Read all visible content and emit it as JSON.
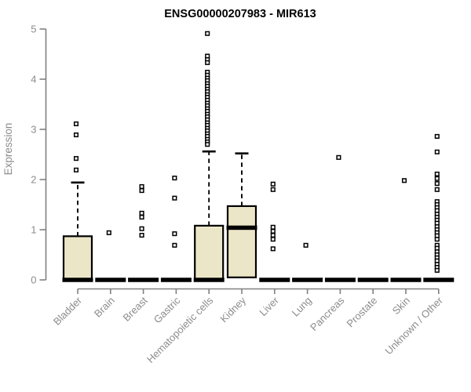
{
  "chart_data": {
    "type": "box",
    "title": "ENSG00000207983 - MIR613",
    "xlabel": "",
    "ylabel": "Expression",
    "ylim": [
      0,
      5
    ],
    "yticks": [
      0,
      1,
      2,
      3,
      4,
      5
    ],
    "grid": false,
    "legend": "none",
    "colors": {
      "box_fill": "#ECE6C8",
      "box_stroke": "#000000",
      "median": "#000000",
      "axis": "#808080",
      "tick_label": "#8C8C8C",
      "title": "#000000",
      "background": "#FFFFFF"
    },
    "categories": [
      "Bladder",
      "Brain",
      "Breast",
      "Gastric",
      "Hematopoietic cells",
      "Kidney",
      "Liver",
      "Lung",
      "Pancreas",
      "Prostate",
      "Skin",
      "Unknown / Other"
    ],
    "series": [
      {
        "label": "Bladder",
        "q1": 0,
        "median": 0,
        "q3": 0.87,
        "whisker_high": 1.94,
        "whisker_low": null,
        "outliers": [
          3.11,
          2.89,
          2.42,
          2.19
        ]
      },
      {
        "label": "Brain",
        "q1": 0,
        "median": 0,
        "q3": 0,
        "whisker_high": null,
        "whisker_low": null,
        "outliers": [
          0.94
        ]
      },
      {
        "label": "Breast",
        "q1": 0,
        "median": 0,
        "q3": 0,
        "whisker_high": null,
        "whisker_low": null,
        "outliers": [
          1.86,
          1.78,
          1.33,
          1.25,
          1.02,
          0.89
        ]
      },
      {
        "label": "Gastric",
        "q1": 0,
        "median": 0,
        "q3": 0,
        "whisker_high": null,
        "whisker_low": null,
        "outliers": [
          2.03,
          1.63,
          0.92,
          0.69
        ]
      },
      {
        "label": "Hematopoietic cells",
        "q1": 0,
        "median": 0,
        "q3": 1.08,
        "whisker_high": 2.56,
        "whisker_low": null,
        "outliers": [
          4.91,
          4.46,
          4.39,
          4.33,
          4.14,
          4.08,
          4.02,
          3.97,
          3.91,
          3.86,
          3.8,
          3.75,
          3.69,
          3.64,
          3.58,
          3.52,
          3.47,
          3.41,
          3.36,
          3.3,
          3.25,
          3.19,
          3.13,
          3.08,
          3.02,
          2.97,
          2.91,
          2.86,
          2.8,
          2.75,
          2.7
        ]
      },
      {
        "label": "Kidney",
        "q1": 0.05,
        "median": 1.04,
        "q3": 1.47,
        "whisker_high": 2.52,
        "whisker_low": null,
        "outliers": []
      },
      {
        "label": "Liver",
        "q1": 0,
        "median": 0,
        "q3": 0,
        "whisker_high": null,
        "whisker_low": null,
        "outliers": [
          1.91,
          1.8,
          1.05,
          0.97,
          0.89,
          0.81,
          0.62
        ]
      },
      {
        "label": "Lung",
        "q1": 0,
        "median": 0,
        "q3": 0,
        "whisker_high": null,
        "whisker_low": null,
        "outliers": [
          0.69
        ]
      },
      {
        "label": "Pancreas",
        "q1": 0,
        "median": 0,
        "q3": 0,
        "whisker_high": null,
        "whisker_low": null,
        "outliers": [
          2.44
        ]
      },
      {
        "label": "Prostate",
        "q1": 0,
        "median": 0,
        "q3": 0,
        "whisker_high": null,
        "whisker_low": null,
        "outliers": []
      },
      {
        "label": "Skin",
        "q1": 0,
        "median": 0,
        "q3": 0,
        "whisker_high": null,
        "whisker_low": null,
        "outliers": [
          1.98
        ]
      },
      {
        "label": "Unknown / Other",
        "q1": 0,
        "median": 0,
        "q3": 0,
        "whisker_high": null,
        "whisker_low": null,
        "outliers": [
          2.86,
          2.55,
          2.11,
          2.02,
          1.92,
          1.8,
          1.56,
          1.5,
          1.44,
          1.38,
          1.31,
          1.25,
          1.19,
          1.13,
          1.06,
          1.0,
          0.94,
          0.88,
          0.81,
          0.69,
          0.63,
          0.56,
          0.5,
          0.44,
          0.38,
          0.31,
          0.25,
          0.19
        ]
      }
    ]
  }
}
